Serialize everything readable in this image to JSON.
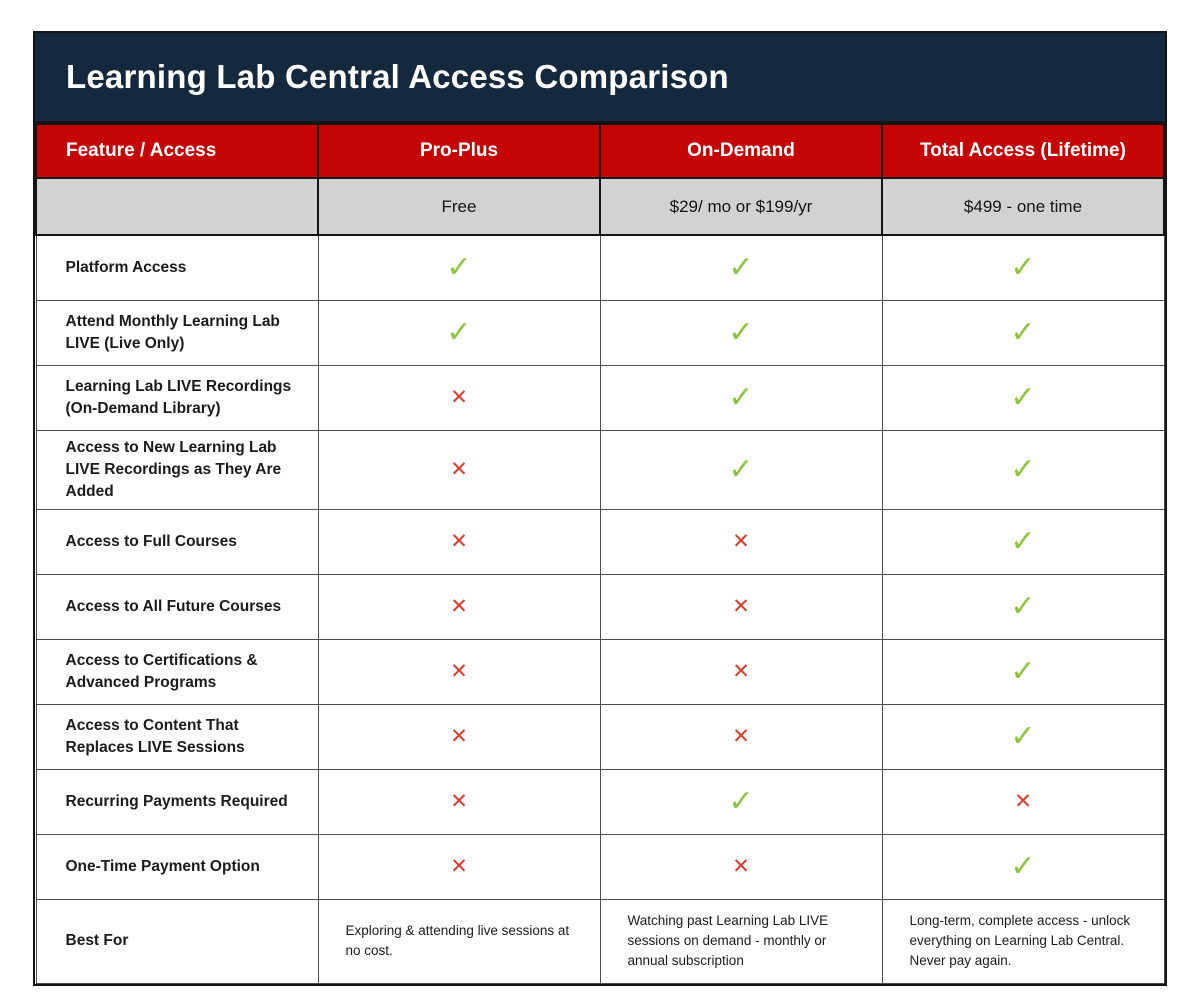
{
  "title": "Learning Lab Central Access Comparison",
  "colors": {
    "title_band_navy": "#15293E",
    "header_red": "#C50404",
    "pricing_row_gray": "#D2D2D2",
    "check_green": "#8CC63E",
    "cross_red": "#DA3B2B",
    "border_dark": "#141414",
    "grid_line": "#4d4d4d"
  },
  "table": {
    "columns": [
      "Feature / Access",
      "Pro-Plus",
      "On-Demand",
      "Total Access (Lifetime)"
    ],
    "pricing": [
      "",
      "Free",
      "$29/ mo or $199/yr",
      "$499 - one time"
    ],
    "icons": {
      "check": "✓",
      "cross": "✕"
    },
    "rows": [
      {
        "feature": "Platform Access",
        "values": [
          "check",
          "check",
          "check"
        ]
      },
      {
        "feature": "Attend Monthly Learning Lab LIVE (Live Only)",
        "values": [
          "check",
          "check",
          "check"
        ]
      },
      {
        "feature": "Learning Lab LIVE Recordings (On-Demand Library)",
        "values": [
          "cross",
          "check",
          "check"
        ]
      },
      {
        "feature": "Access to New Learning Lab LIVE Recordings as They Are Added",
        "values": [
          "cross",
          "check",
          "check"
        ]
      },
      {
        "feature": "Access to Full Courses",
        "values": [
          "cross",
          "cross",
          "check"
        ]
      },
      {
        "feature": "Access to All Future Courses",
        "values": [
          "cross",
          "cross",
          "check"
        ]
      },
      {
        "feature": "Access to Certifications & Advanced Programs",
        "values": [
          "cross",
          "cross",
          "check"
        ]
      },
      {
        "feature": "Access to Content That Replaces LIVE Sessions",
        "values": [
          "cross",
          "cross",
          "check"
        ]
      },
      {
        "feature": "Recurring Payments Required",
        "values": [
          "cross",
          "check",
          "cross"
        ]
      },
      {
        "feature": "One-Time Payment Option",
        "values": [
          "cross",
          "cross",
          "check"
        ]
      }
    ],
    "best_for": {
      "label": "Best For",
      "values": [
        "Exploring & attending live sessions at no cost.",
        "Watching past Learning Lab LIVE sessions on demand - monthly or annual subscription",
        "Long-term, complete access - unlock everything on Learning Lab Central. Never pay again."
      ]
    }
  }
}
